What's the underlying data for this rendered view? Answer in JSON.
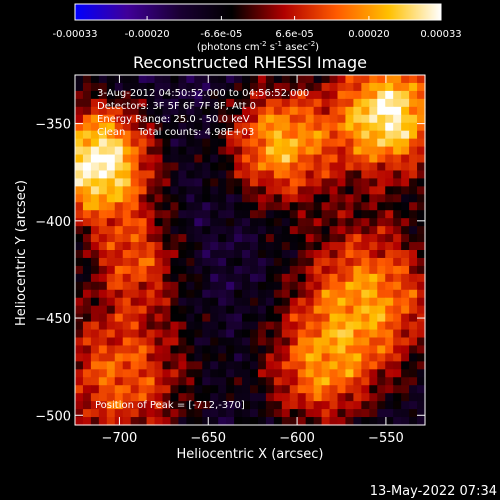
{
  "colors": {
    "background": "#000000",
    "text": "#ffffff"
  },
  "colorbar": {
    "tick_labels": [
      "-0.00033",
      "-0.00020",
      "-6.6e-05",
      "6.6e-05",
      "0.00020",
      "0.00033"
    ],
    "tick_values": [
      -0.00033,
      -0.0002,
      -6.6e-05,
      6.6e-05,
      0.0002,
      0.00033
    ],
    "range": [
      -0.00033,
      0.00033
    ],
    "unit_prefix": "(photons cm",
    "unit_exp1": "-2",
    "unit_mid1": " s",
    "unit_exp2": "-1",
    "unit_mid2": " asec",
    "unit_exp3": "-2",
    "unit_suffix": ")",
    "colormap": [
      "#0000ff",
      "#400099",
      "#1a0033",
      "#000000",
      "#b00000",
      "#ff5a00",
      "#ffc000",
      "#ffffff"
    ]
  },
  "chart_data": {
    "type": "heatmap",
    "title": "Reconstructed RHESSI Image",
    "xlabel": "Heliocentric X (arcsec)",
    "ylabel": "Heliocentric Y (arcsec)",
    "xlim": [
      -725,
      -528
    ],
    "ylim": [
      -505,
      -325
    ],
    "x_ticks": [
      -700,
      -650,
      -600,
      -550
    ],
    "y_ticks": [
      -350,
      -400,
      -450,
      -500
    ],
    "x_tick_labels": [
      "−700",
      "−650",
      "−600",
      "−550"
    ],
    "y_tick_labels": [
      "−350",
      "−400",
      "−450",
      "−500"
    ],
    "grid": false,
    "hot_spots": [
      {
        "x": -712,
        "y": -370,
        "intensity": 1.0,
        "spread": 22
      },
      {
        "x": -548,
        "y": -345,
        "intensity": 0.95,
        "spread": 22
      },
      {
        "x": -610,
        "y": -360,
        "intensity": 0.75,
        "spread": 22
      },
      {
        "x": -560,
        "y": -440,
        "intensity": 0.7,
        "spread": 30
      },
      {
        "x": -700,
        "y": -480,
        "intensity": 0.6,
        "spread": 30
      },
      {
        "x": -690,
        "y": -420,
        "intensity": 0.45,
        "spread": 18
      },
      {
        "x": -590,
        "y": -480,
        "intensity": 0.5,
        "spread": 22
      }
    ],
    "annotations": {
      "time_range": "3-Aug-2012 04:50:52.000 to 04:56:52.000",
      "detectors": "Detectors: 3F 5F 6F 7F 8F, Att 0",
      "energy_range": "Energy Range: 25.0 - 50.0 keV",
      "algorithm": "Clean    Total counts: 4.98E+03",
      "peak_position": "Position of Peak = [-712,-370]"
    },
    "peak": {
      "x": -712,
      "y": -370
    }
  },
  "footer": {
    "timestamp": "13-May-2022 07:34"
  }
}
